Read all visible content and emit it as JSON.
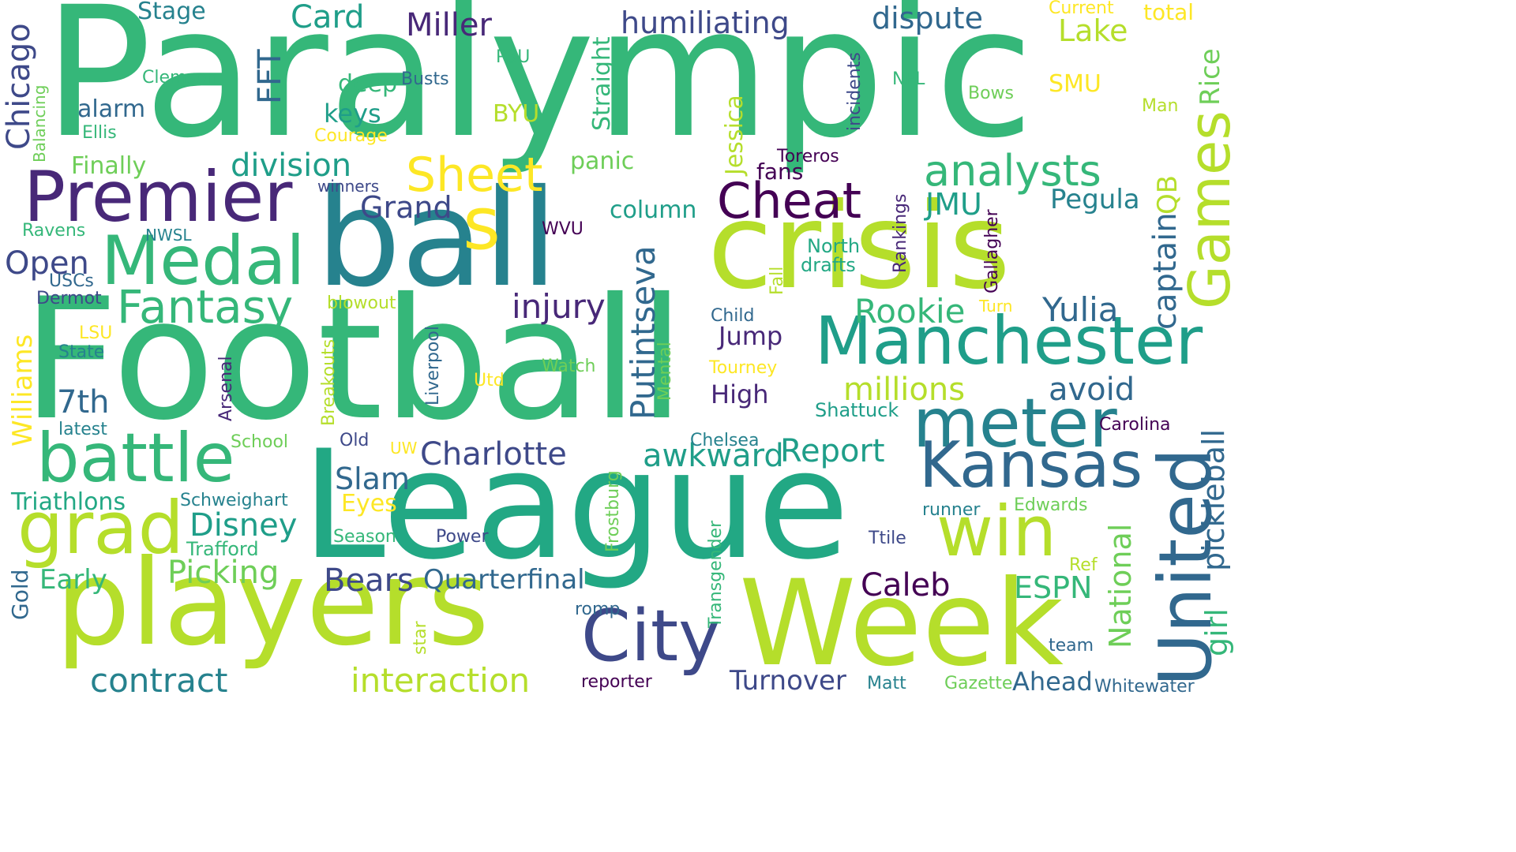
{
  "palette": {
    "dark_purple": "#440154",
    "indigo": "#482878",
    "slate_blue": "#3e4989",
    "steel_blue": "#31688e",
    "teal_blue": "#26828e",
    "teal": "#1f9e89",
    "sea_green": "#22a884",
    "green": "#35b779",
    "light_green": "#6ece58",
    "yellow_green": "#b5de2b",
    "yellow": "#fde725"
  },
  "words": [
    {
      "text": "Paralympic",
      "color": "#35b779"
    },
    {
      "text": "Football",
      "color": "#35b779"
    },
    {
      "text": "League",
      "color": "#22a884"
    },
    {
      "text": "crisis",
      "color": "#b5de2b"
    },
    {
      "text": "ball",
      "color": "#26828e"
    },
    {
      "text": "players",
      "color": "#b5de2b"
    },
    {
      "text": "Week",
      "color": "#b5de2b"
    },
    {
      "text": "Premier",
      "color": "#482878"
    },
    {
      "text": "Manchester",
      "color": "#1f9e89"
    },
    {
      "text": "Medal",
      "color": "#35b779"
    },
    {
      "text": "battle",
      "color": "#35b779"
    },
    {
      "text": "meter",
      "color": "#26828e"
    },
    {
      "text": "Kansas",
      "color": "#31688e"
    },
    {
      "text": "United",
      "color": "#31688e"
    },
    {
      "text": "City",
      "color": "#3e4989"
    },
    {
      "text": "grad",
      "color": "#b5de2b"
    },
    {
      "text": "win",
      "color": "#b5de2b"
    },
    {
      "text": "Games",
      "color": "#b5de2b"
    },
    {
      "text": "Fantasy",
      "color": "#35b779"
    },
    {
      "text": "Cheat",
      "color": "#440154"
    },
    {
      "text": "analysts",
      "color": "#35b779"
    },
    {
      "text": "Sheet",
      "color": "#fde725"
    },
    {
      "text": "s",
      "color": "#fde725"
    },
    {
      "text": "Charlotte",
      "color": "#3e4989"
    },
    {
      "text": "contract",
      "color": "#26828e"
    },
    {
      "text": "interaction",
      "color": "#b5de2b"
    },
    {
      "text": "injury",
      "color": "#482878"
    },
    {
      "text": "Putintseva",
      "color": "#31688e"
    },
    {
      "text": "pickleball",
      "color": "#31688e"
    },
    {
      "text": "Rookie",
      "color": "#35b779"
    },
    {
      "text": "Yulia",
      "color": "#31688e"
    },
    {
      "text": "millions",
      "color": "#b5de2b"
    },
    {
      "text": "avoid",
      "color": "#31688e"
    },
    {
      "text": "captain",
      "color": "#31688e"
    },
    {
      "text": "Report",
      "color": "#1f9e89"
    },
    {
      "text": "awkward",
      "color": "#1f9e89"
    },
    {
      "text": "Grand",
      "color": "#3e4989"
    },
    {
      "text": "division",
      "color": "#1f9e89"
    },
    {
      "text": "Disney",
      "color": "#1f9e89"
    },
    {
      "text": "Picking",
      "color": "#6ece58"
    },
    {
      "text": "Bears",
      "color": "#3e4989"
    },
    {
      "text": "Quarterfinal",
      "color": "#31688e"
    },
    {
      "text": "Caleb",
      "color": "#440154"
    },
    {
      "text": "ESPN",
      "color": "#35b779"
    },
    {
      "text": "Turnover",
      "color": "#3e4989"
    },
    {
      "text": "Ahead",
      "color": "#31688e"
    },
    {
      "text": "National",
      "color": "#6ece58"
    },
    {
      "text": "girl",
      "color": "#35b779"
    },
    {
      "text": "Slam",
      "color": "#31688e"
    },
    {
      "text": "7th",
      "color": "#31688e"
    },
    {
      "text": "Open",
      "color": "#3e4989"
    },
    {
      "text": "Chicago",
      "color": "#3e4989"
    },
    {
      "text": "FFT",
      "color": "#31688e"
    },
    {
      "text": "Card",
      "color": "#1f9e89"
    },
    {
      "text": "Miller",
      "color": "#482878"
    },
    {
      "text": "humiliating",
      "color": "#3e4989"
    },
    {
      "text": "dispute",
      "color": "#31688e"
    },
    {
      "text": "Lake",
      "color": "#b5de2b"
    },
    {
      "text": "Rice",
      "color": "#6ece58"
    },
    {
      "text": "QB",
      "color": "#b5de2b"
    },
    {
      "text": "JMU",
      "color": "#1f9e89"
    },
    {
      "text": "Pegula",
      "color": "#26828e"
    },
    {
      "text": "Triathlons",
      "color": "#22a884"
    },
    {
      "text": "Williams",
      "color": "#fde725"
    },
    {
      "text": "Early",
      "color": "#35b779"
    },
    {
      "text": "Jump",
      "color": "#482878"
    },
    {
      "text": "High",
      "color": "#482878"
    },
    {
      "text": "column",
      "color": "#1f9e89"
    },
    {
      "text": "keys",
      "color": "#1f9e89"
    },
    {
      "text": "alarm",
      "color": "#31688e"
    },
    {
      "text": "deep",
      "color": "#35b779"
    },
    {
      "text": "Stage",
      "color": "#26828e"
    },
    {
      "text": "Straight",
      "color": "#35b779"
    },
    {
      "text": "Jessica",
      "color": "#b5de2b"
    },
    {
      "text": "panic",
      "color": "#6ece58"
    },
    {
      "text": "fans",
      "color": "#440154"
    },
    {
      "text": "BYU",
      "color": "#b5de2b"
    },
    {
      "text": "SMU",
      "color": "#fde725"
    },
    {
      "text": "Finally",
      "color": "#6ece58"
    },
    {
      "text": "Eyes",
      "color": "#fde725"
    },
    {
      "text": "Trafford",
      "color": "#35b779"
    },
    {
      "text": "Schweighart",
      "color": "#26828e"
    },
    {
      "text": "Power",
      "color": "#3e4989"
    },
    {
      "text": "Season",
      "color": "#35b779"
    },
    {
      "text": "Mental",
      "color": "#6ece58"
    },
    {
      "text": "Transgender",
      "color": "#35b779"
    },
    {
      "text": "Frostburg",
      "color": "#6ece58"
    },
    {
      "text": "Liverpool",
      "color": "#31688e"
    },
    {
      "text": "Arsenal",
      "color": "#482878"
    },
    {
      "text": "Breakouts",
      "color": "#b5de2b"
    },
    {
      "text": "Gold",
      "color": "#31688e"
    },
    {
      "text": "Shattuck",
      "color": "#1f9e89"
    },
    {
      "text": "Carolina",
      "color": "#440154"
    },
    {
      "text": "Edwards",
      "color": "#6ece58"
    },
    {
      "text": "runner",
      "color": "#26828e"
    },
    {
      "text": "Ttile",
      "color": "#3e4989"
    },
    {
      "text": "Ref",
      "color": "#b5de2b"
    },
    {
      "text": "team",
      "color": "#31688e"
    },
    {
      "text": "Whitewater",
      "color": "#31688e"
    },
    {
      "text": "Gazette",
      "color": "#6ece58"
    },
    {
      "text": "Matt",
      "color": "#26828e"
    },
    {
      "text": "reporter",
      "color": "#440154"
    },
    {
      "text": "star",
      "color": "#b5de2b"
    },
    {
      "text": "romp",
      "color": "#31688e"
    },
    {
      "text": "Chelsea",
      "color": "#26828e"
    },
    {
      "text": "Child",
      "color": "#31688e"
    },
    {
      "text": "Tourney",
      "color": "#fde725"
    },
    {
      "text": "Turn",
      "color": "#fde725"
    },
    {
      "text": "Gallagher",
      "color": "#440154"
    },
    {
      "text": "Rankings",
      "color": "#482878"
    },
    {
      "text": "North",
      "color": "#22a884"
    },
    {
      "text": "drafts",
      "color": "#22a884"
    },
    {
      "text": "Fall",
      "color": "#b5de2b"
    },
    {
      "text": "Toreros",
      "color": "#440154"
    },
    {
      "text": "winners",
      "color": "#3e4989"
    },
    {
      "text": "WVU",
      "color": "#440154"
    },
    {
      "text": "NWSL",
      "color": "#26828e"
    },
    {
      "text": "Ravens",
      "color": "#35b779"
    },
    {
      "text": "USCs",
      "color": "#31688e"
    },
    {
      "text": "Dermot",
      "color": "#3e4989"
    },
    {
      "text": "LSU",
      "color": "#fde725"
    },
    {
      "text": "State",
      "color": "#26828e"
    },
    {
      "text": "latest",
      "color": "#26828e"
    },
    {
      "text": "School",
      "color": "#6ece58"
    },
    {
      "text": "Old",
      "color": "#3e4989"
    },
    {
      "text": "UW",
      "color": "#fde725"
    },
    {
      "text": "Utd",
      "color": "#fde725"
    },
    {
      "text": "Watch",
      "color": "#6ece58"
    },
    {
      "text": "blowout",
      "color": "#b5de2b"
    },
    {
      "text": "Courage",
      "color": "#fde725"
    },
    {
      "text": "Ellis",
      "color": "#35b779"
    },
    {
      "text": "Balancing",
      "color": "#6ece58"
    },
    {
      "text": "Clemson",
      "color": "#35b779"
    },
    {
      "text": "Busts",
      "color": "#31688e"
    },
    {
      "text": "PSU",
      "color": "#35b779"
    },
    {
      "text": "incidents",
      "color": "#3e4989"
    },
    {
      "text": "NFL",
      "color": "#35b779"
    },
    {
      "text": "Bows",
      "color": "#6ece58"
    },
    {
      "text": "Man",
      "color": "#b5de2b"
    },
    {
      "text": "Current",
      "color": "#fde725"
    },
    {
      "text": "total",
      "color": "#fde725"
    }
  ]
}
